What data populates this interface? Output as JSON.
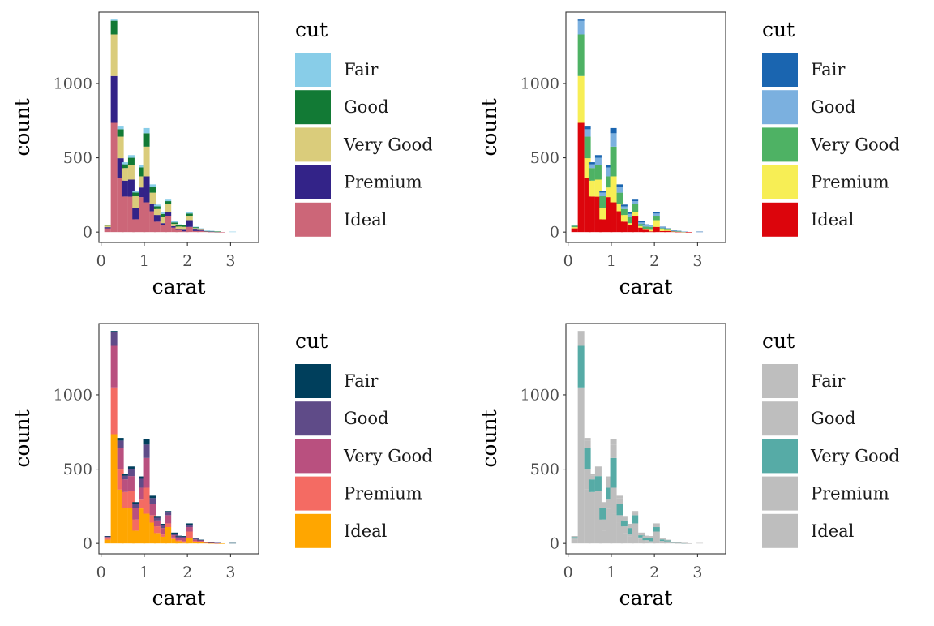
{
  "chart_data": [
    {
      "type": "bar",
      "stacked": true,
      "xlabel": "carat",
      "ylabel": "count",
      "xlim": [
        -0.05,
        3.65
      ],
      "ylim": [
        -70,
        1480
      ],
      "xticks": [
        0,
        1,
        2,
        3
      ],
      "yticks": [
        0,
        500,
        1000
      ],
      "grid": false,
      "legend_position": "right",
      "legend_title": "cut",
      "categories": [
        "0.15",
        "0.30",
        "0.45",
        "0.55",
        "0.70",
        "0.80",
        "0.95",
        "1.05",
        "1.20",
        "1.30",
        "1.45",
        "1.55",
        "1.70",
        "1.80",
        "1.95",
        "2.05",
        "2.20",
        "2.30",
        "2.45",
        "2.55",
        "2.70",
        "2.80",
        "2.95",
        "3.05"
      ],
      "series": [
        {
          "name": "Fair",
          "color": "#88cde8",
          "values": [
            2,
            8,
            18,
            14,
            18,
            12,
            16,
            35,
            16,
            12,
            10,
            10,
            8,
            5,
            5,
            10,
            3,
            2,
            1,
            1,
            0,
            0,
            0,
            3
          ]
        },
        {
          "name": "Good",
          "color": "#127a35",
          "values": [
            5,
            92,
            50,
            25,
            47,
            25,
            60,
            90,
            40,
            18,
            18,
            18,
            10,
            10,
            10,
            15,
            6,
            3,
            1,
            1,
            1,
            0,
            0,
            0
          ]
        },
        {
          "name": "Very Good",
          "color": "#dacc7b",
          "values": [
            10,
            280,
            145,
            85,
            100,
            80,
            75,
            200,
            75,
            40,
            44,
            55,
            15,
            15,
            20,
            30,
            10,
            6,
            2,
            2,
            1,
            0,
            0,
            0
          ]
        },
        {
          "name": "Premium",
          "color": "#332388",
          "values": [
            8,
            315,
            135,
            107,
            115,
            75,
            65,
            175,
            50,
            45,
            15,
            25,
            10,
            7,
            10,
            45,
            10,
            6,
            2,
            2,
            1,
            0,
            0,
            0
          ]
        },
        {
          "name": "Ideal",
          "color": "#cc6678",
          "values": [
            25,
            735,
            362,
            239,
            238,
            86,
            235,
            200,
            140,
            70,
            45,
            110,
            30,
            15,
            5,
            35,
            7,
            8,
            4,
            2,
            1,
            1,
            0,
            0
          ]
        }
      ]
    },
    {
      "type": "bar",
      "stacked": true,
      "xlabel": "carat",
      "ylabel": "count",
      "xlim": [
        -0.05,
        3.65
      ],
      "ylim": [
        -70,
        1480
      ],
      "xticks": [
        0,
        1,
        2,
        3
      ],
      "yticks": [
        0,
        500,
        1000
      ],
      "grid": false,
      "legend_position": "right",
      "legend_title": "cut",
      "categories": [
        "0.15",
        "0.30",
        "0.45",
        "0.55",
        "0.70",
        "0.80",
        "0.95",
        "1.05",
        "1.20",
        "1.30",
        "1.45",
        "1.55",
        "1.70",
        "1.80",
        "1.95",
        "2.05",
        "2.20",
        "2.30",
        "2.45",
        "2.55",
        "2.70",
        "2.80",
        "2.95",
        "3.05"
      ],
      "series": [
        {
          "name": "Fair",
          "color": "#1a65b0",
          "values": [
            2,
            8,
            18,
            14,
            18,
            12,
            16,
            35,
            16,
            12,
            10,
            10,
            8,
            5,
            5,
            10,
            3,
            2,
            1,
            1,
            0,
            0,
            0,
            3
          ]
        },
        {
          "name": "Good",
          "color": "#7bb0df",
          "values": [
            5,
            92,
            50,
            25,
            47,
            25,
            60,
            90,
            40,
            18,
            18,
            18,
            10,
            10,
            10,
            15,
            6,
            3,
            1,
            1,
            1,
            0,
            0,
            0
          ]
        },
        {
          "name": "Very Good",
          "color": "#4eb264",
          "values": [
            10,
            280,
            145,
            85,
            100,
            80,
            75,
            200,
            75,
            40,
            44,
            55,
            15,
            15,
            20,
            30,
            10,
            6,
            2,
            2,
            1,
            0,
            0,
            0
          ]
        },
        {
          "name": "Premium",
          "color": "#f7ee55",
          "values": [
            8,
            315,
            135,
            107,
            115,
            75,
            65,
            175,
            50,
            45,
            15,
            25,
            10,
            7,
            10,
            45,
            10,
            6,
            2,
            2,
            1,
            0,
            0,
            0
          ]
        },
        {
          "name": "Ideal",
          "color": "#dc050c",
          "values": [
            25,
            735,
            362,
            239,
            238,
            86,
            235,
            200,
            140,
            70,
            45,
            110,
            30,
            15,
            5,
            35,
            7,
            8,
            4,
            2,
            1,
            1,
            0,
            0
          ]
        }
      ]
    },
    {
      "type": "bar",
      "stacked": true,
      "xlabel": "carat",
      "ylabel": "count",
      "xlim": [
        -0.05,
        3.65
      ],
      "ylim": [
        -70,
        1480
      ],
      "xticks": [
        0,
        1,
        2,
        3
      ],
      "yticks": [
        0,
        500,
        1000
      ],
      "grid": false,
      "legend_position": "right",
      "legend_title": "cut",
      "categories": [
        "0.15",
        "0.30",
        "0.45",
        "0.55",
        "0.70",
        "0.80",
        "0.95",
        "1.05",
        "1.20",
        "1.30",
        "1.45",
        "1.55",
        "1.70",
        "1.80",
        "1.95",
        "2.05",
        "2.20",
        "2.30",
        "2.45",
        "2.55",
        "2.70",
        "2.80",
        "2.95",
        "3.05"
      ],
      "series": [
        {
          "name": "Fair",
          "color": "#003f5c",
          "values": [
            2,
            8,
            18,
            14,
            18,
            12,
            16,
            35,
            16,
            12,
            10,
            10,
            8,
            5,
            5,
            10,
            3,
            2,
            1,
            1,
            0,
            0,
            0,
            3
          ]
        },
        {
          "name": "Good",
          "color": "#5f4b88",
          "values": [
            5,
            92,
            50,
            25,
            47,
            25,
            60,
            90,
            40,
            18,
            18,
            18,
            10,
            10,
            10,
            15,
            6,
            3,
            1,
            1,
            1,
            0,
            0,
            0
          ]
        },
        {
          "name": "Very Good",
          "color": "#b9507f",
          "values": [
            10,
            280,
            145,
            85,
            100,
            80,
            75,
            200,
            75,
            40,
            44,
            55,
            15,
            15,
            20,
            30,
            10,
            6,
            2,
            2,
            1,
            0,
            0,
            0
          ]
        },
        {
          "name": "Premium",
          "color": "#f46b63",
          "values": [
            8,
            315,
            135,
            107,
            115,
            75,
            65,
            175,
            50,
            45,
            15,
            25,
            10,
            7,
            10,
            45,
            10,
            6,
            2,
            2,
            1,
            0,
            0,
            0
          ]
        },
        {
          "name": "Ideal",
          "color": "#ffa600",
          "values": [
            25,
            735,
            362,
            239,
            238,
            86,
            235,
            200,
            140,
            70,
            45,
            110,
            30,
            15,
            5,
            35,
            7,
            8,
            4,
            2,
            1,
            1,
            0,
            0
          ]
        }
      ]
    },
    {
      "type": "bar",
      "stacked": true,
      "xlabel": "carat",
      "ylabel": "count",
      "xlim": [
        -0.05,
        3.65
      ],
      "ylim": [
        -70,
        1480
      ],
      "xticks": [
        0,
        1,
        2,
        3
      ],
      "yticks": [
        0,
        500,
        1000
      ],
      "grid": false,
      "legend_position": "right",
      "legend_title": "cut",
      "categories": [
        "0.15",
        "0.30",
        "0.45",
        "0.55",
        "0.70",
        "0.80",
        "0.95",
        "1.05",
        "1.20",
        "1.30",
        "1.45",
        "1.55",
        "1.70",
        "1.80",
        "1.95",
        "2.05",
        "2.20",
        "2.30",
        "2.45",
        "2.55",
        "2.70",
        "2.80",
        "2.95",
        "3.05"
      ],
      "series": [
        {
          "name": "Fair",
          "color": "#bebebe",
          "values": [
            2,
            8,
            18,
            14,
            18,
            12,
            16,
            35,
            16,
            12,
            10,
            10,
            8,
            5,
            5,
            10,
            3,
            2,
            1,
            1,
            0,
            0,
            0,
            3
          ]
        },
        {
          "name": "Good",
          "color": "#bebebe",
          "values": [
            5,
            92,
            50,
            25,
            47,
            25,
            60,
            90,
            40,
            18,
            18,
            18,
            10,
            10,
            10,
            15,
            6,
            3,
            1,
            1,
            1,
            0,
            0,
            0
          ]
        },
        {
          "name": "Very Good",
          "color": "#56aba6",
          "values": [
            10,
            280,
            145,
            85,
            100,
            80,
            75,
            200,
            75,
            40,
            44,
            55,
            15,
            15,
            20,
            30,
            10,
            6,
            2,
            2,
            1,
            0,
            0,
            0
          ]
        },
        {
          "name": "Premium",
          "color": "#bebebe",
          "values": [
            8,
            315,
            135,
            107,
            115,
            75,
            65,
            175,
            50,
            45,
            15,
            25,
            10,
            7,
            10,
            45,
            10,
            6,
            2,
            2,
            1,
            0,
            0,
            0
          ]
        },
        {
          "name": "Ideal",
          "color": "#bebebe",
          "values": [
            25,
            735,
            362,
            239,
            238,
            86,
            235,
            200,
            140,
            70,
            45,
            110,
            30,
            15,
            5,
            35,
            7,
            8,
            4,
            2,
            1,
            1,
            0,
            0
          ]
        }
      ]
    }
  ]
}
